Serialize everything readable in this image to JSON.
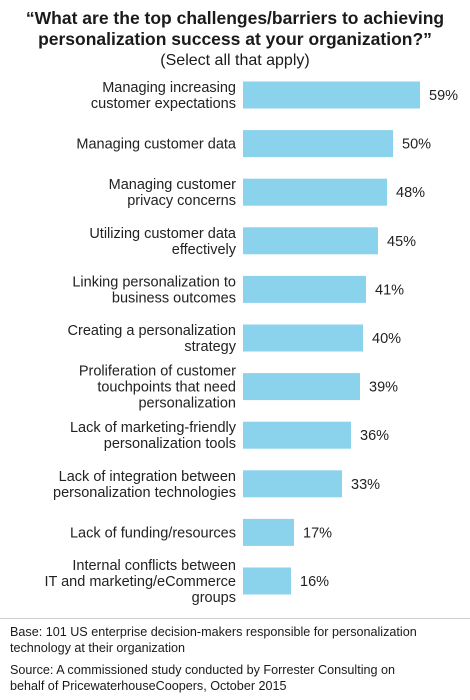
{
  "header": {
    "title_line1": "“What are the top challenges/barriers to achieving",
    "title_line2": "personalization success at your organization?”",
    "subtitle": "(Select all that apply)"
  },
  "chart_data": {
    "type": "bar",
    "orientation": "horizontal",
    "categories": [
      [
        "Managing increasing",
        "customer expectations"
      ],
      [
        "Managing customer data"
      ],
      [
        "Managing customer",
        "privacy concerns"
      ],
      [
        "Utilizing customer data",
        "effectively"
      ],
      [
        "Linking personalization to",
        "business outcomes"
      ],
      [
        "Creating a personalization",
        "strategy"
      ],
      [
        "Proliferation of customer",
        "touchpoints that need",
        "personalization"
      ],
      [
        "Lack of marketing-friendly",
        "personalization tools"
      ],
      [
        "Lack of integration between",
        "personalization technologies"
      ],
      [
        "Lack of funding/resources"
      ],
      [
        "Internal conflicts between",
        "IT and marketing/eCommerce",
        "groups"
      ]
    ],
    "values": [
      59,
      50,
      48,
      45,
      41,
      40,
      39,
      36,
      33,
      17,
      16
    ],
    "value_labels": [
      "59%",
      "50%",
      "48%",
      "45%",
      "41%",
      "40%",
      "39%",
      "36%",
      "33%",
      "17%",
      "16%"
    ],
    "unit": "%",
    "xlim": [
      0,
      59
    ],
    "bar_color": "#8bd2ec",
    "grid": false,
    "legend": "none"
  },
  "footer": {
    "base_line1": "Base: 101 US enterprise decision-makers responsible for personalization",
    "base_line2": "technology at their organization",
    "source_line1": "Source: A commissioned study conducted by Forrester Consulting on",
    "source_line2": "behalf of PricewaterhouseCoopers, October 2015"
  }
}
